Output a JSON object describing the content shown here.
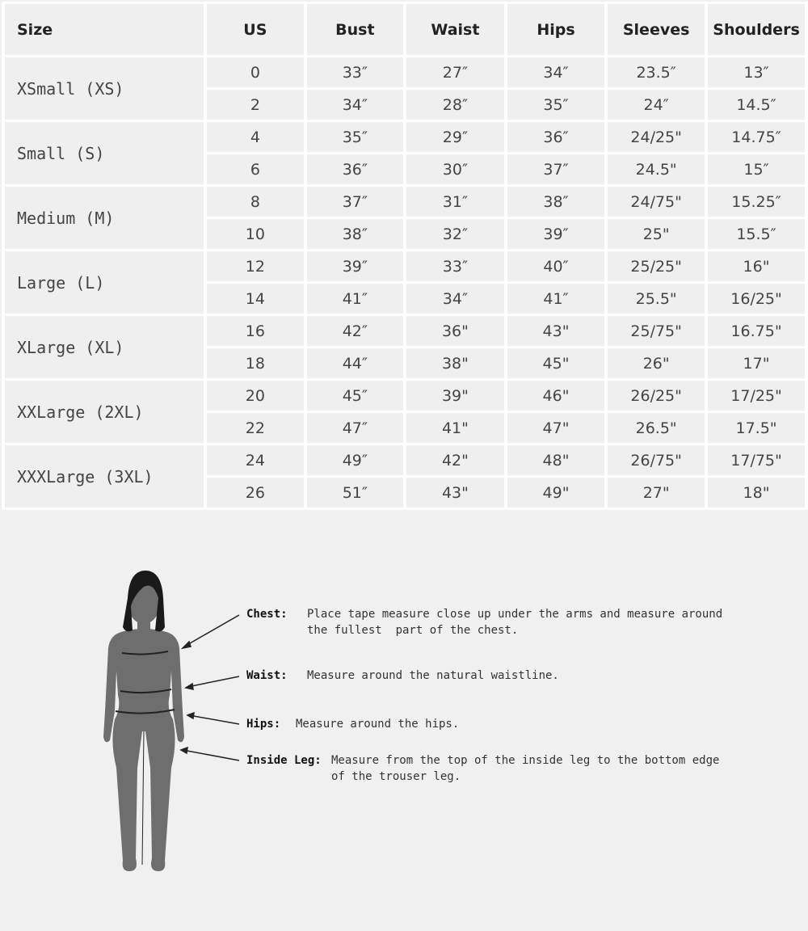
{
  "table": {
    "headers": [
      "Size",
      "US",
      "Bust",
      "Waist",
      "Hips",
      "Sleeves",
      "Shoulders"
    ],
    "groups": [
      {
        "size": "XSmall (XS)",
        "rows": [
          [
            "0",
            "33″",
            "27″",
            "34″",
            "23.5″",
            "13″"
          ],
          [
            "2",
            "34″",
            "28″",
            "35″",
            "24″",
            "14.5″"
          ]
        ]
      },
      {
        "size": "Small (S)",
        "rows": [
          [
            "4",
            "35″",
            "29″",
            "36″",
            "24/25\"",
            "14.75″"
          ],
          [
            "6",
            "36″",
            "30″",
            "37″",
            "24.5\"",
            "15″"
          ]
        ]
      },
      {
        "size": "Medium (M)",
        "rows": [
          [
            "8",
            "37″",
            "31″",
            "38″",
            "24/75\"",
            "15.25″"
          ],
          [
            "10",
            "38″",
            "32″",
            "39″",
            "25\"",
            "15.5″"
          ]
        ]
      },
      {
        "size": "Large (L)",
        "rows": [
          [
            "12",
            "39″",
            "33″",
            "40″",
            "25/25\"",
            "16\""
          ],
          [
            "14",
            "41″",
            "34″",
            "41″",
            "25.5\"",
            "16/25\""
          ]
        ]
      },
      {
        "size": "XLarge (XL)",
        "rows": [
          [
            "16",
            "42″",
            "36\"",
            "43\"",
            "25/75\"",
            "16.75\""
          ],
          [
            "18",
            "44″",
            "38\"",
            "45\"",
            "26\"",
            "17\""
          ]
        ]
      },
      {
        "size": "XXLarge (2XL)",
        "rows": [
          [
            "20",
            "45″",
            "39\"",
            "46\"",
            "26/25\"",
            "17/25\""
          ],
          [
            "22",
            "47″",
            "41\"",
            "47\"",
            "26.5\"",
            "17.5\""
          ]
        ]
      },
      {
        "size": "XXXLarge (3XL)",
        "rows": [
          [
            "24",
            "49″",
            "42\"",
            "48\"",
            "26/75\"",
            "17/75\""
          ],
          [
            "26",
            "51″",
            "43\"",
            "49\"",
            "27\"",
            "18\""
          ]
        ]
      }
    ]
  },
  "guide": {
    "chest": {
      "label": "Chest:",
      "text": "Place tape measure close up under the arms and measure around\nthe fullest  part of the chest."
    },
    "waist": {
      "label": "Waist:",
      "text": "Measure around the natural waistline."
    },
    "hips": {
      "label": "Hips:",
      "text": "Measure around the hips."
    },
    "inside_leg": {
      "label": "Inside Leg:",
      "text": "Measure from the top of the inside leg to the bottom edge\nof the trouser leg."
    }
  },
  "colors": {
    "silhouette": "#6e6e6e",
    "hair": "#1a1a1a",
    "cell": "#efefef"
  }
}
